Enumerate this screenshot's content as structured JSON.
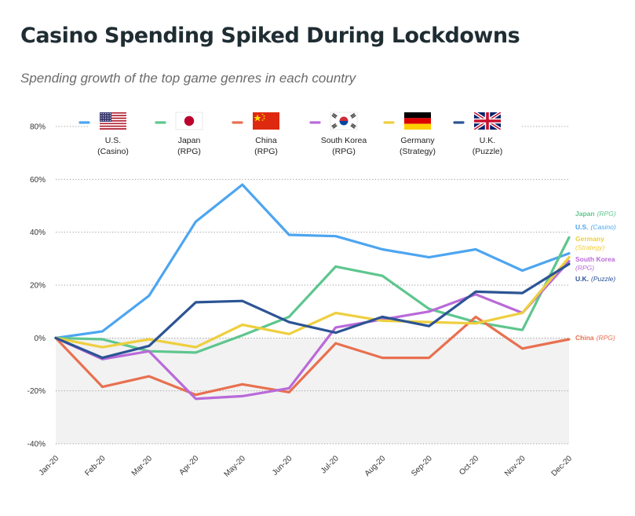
{
  "title": "Casino Spending Spiked During Lockdowns",
  "subtitle": "Spending growth of the top game genres in each country",
  "chart_data": {
    "type": "line",
    "title": "Casino Spending Spiked During Lockdowns",
    "subtitle": "Spending growth of the top game genres in each country",
    "x": [
      "Jan-20",
      "Feb-20",
      "Mar-20",
      "Apr-20",
      "May-20",
      "Jun-20",
      "Jul-20",
      "Aug-20",
      "Sep-20",
      "Oct-20",
      "Nov-20",
      "Dec-20"
    ],
    "yticks": [
      "80%",
      "60%",
      "40%",
      "20%",
      "0%",
      "-20%",
      "-40%"
    ],
    "ylim": [
      -40,
      80
    ],
    "y_unit": "%",
    "shaded_region": [
      -40,
      0
    ],
    "legend_position": "top",
    "series": [
      {
        "key": "us",
        "label": "U.S.",
        "genre": "(Casino)",
        "end_name": "U.S.",
        "end_genre": "(Casino)",
        "color": "#4da5f0",
        "flag": "us-flag-icon",
        "values": [
          0,
          2.5,
          16,
          44,
          58,
          39,
          38.5,
          33.5,
          30.5,
          33.5,
          25.5,
          32
        ]
      },
      {
        "key": "japan",
        "label": "Japan",
        "genre": "(RPG)",
        "end_name": "Japan",
        "end_genre": "(RPG)",
        "color": "#5ec68e",
        "flag": "japan-flag-icon",
        "values": [
          0,
          -0.5,
          -5,
          -5.5,
          1,
          8,
          27,
          23.5,
          11,
          6,
          3,
          38
        ]
      },
      {
        "key": "china",
        "label": "China",
        "genre": "(RPG)",
        "end_name": "China",
        "end_genre": "(RPG)",
        "color": "#e8704f",
        "flag": "china-flag-icon",
        "values": [
          0,
          -18.5,
          -14.5,
          -21.5,
          -17.5,
          -20.5,
          -2,
          -7.5,
          -7.5,
          8,
          -4,
          -0.5
        ]
      },
      {
        "key": "south_korea",
        "label": "South Korea",
        "genre": "(RPG)",
        "end_name": "South Korea",
        "end_genre": "(RPG)",
        "color": "#b96ad9",
        "flag": "south-korea-flag-icon",
        "values": [
          0,
          -8,
          -5,
          -23,
          -22,
          -19,
          4,
          7,
          10,
          16.5,
          9.5,
          29
        ]
      },
      {
        "key": "germany",
        "label": "Germany",
        "genre": "(Strategy)",
        "end_name": "Germany",
        "end_genre": "(Strategy)",
        "color": "#eecf3e",
        "flag": "germany-flag-icon",
        "values": [
          0,
          -3.5,
          -0.5,
          -3.5,
          5,
          1.5,
          9.5,
          6.5,
          6,
          5.5,
          9.5,
          30.5
        ]
      },
      {
        "key": "uk",
        "label": "U.K.",
        "genre": "(Puzzle)",
        "end_name": "U.K.",
        "end_genre": "(Puzzle)",
        "color": "#2c5494",
        "flag": "uk-flag-icon",
        "values": [
          0,
          -7.5,
          -3,
          13.5,
          14,
          6,
          2,
          8,
          4.5,
          17.5,
          17,
          28
        ]
      }
    ],
    "end_label_order": [
      "japan",
      "us",
      "germany",
      "south_korea",
      "uk",
      "china"
    ]
  }
}
